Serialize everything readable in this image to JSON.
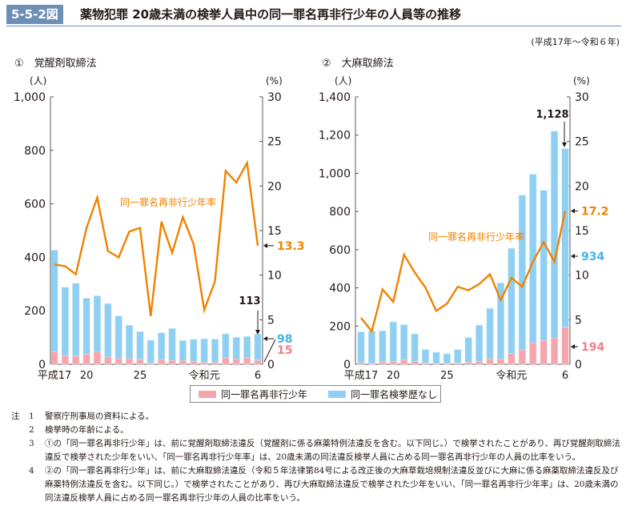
{
  "header": {
    "figure_number": "5-5-2図",
    "title": "薬物犯罪 20歳未満の検挙人員中の同一罪名再非行少年の人員等の推移",
    "period": "(平成17年～令和６年)"
  },
  "colors": {
    "title_box": "#6b8fb5",
    "recidivist_bar": "#f4a6ad",
    "no_record_bar": "#8fd0f2",
    "rate_line": "#f08200",
    "label_blue": "#3fb4e6",
    "label_red": "#ef7f8c"
  },
  "legend": {
    "items": [
      {
        "label": "同一罪名再非行少年",
        "color": "#f4a6ad"
      },
      {
        "label": "同一罪名検挙歴なし",
        "color": "#8fd0f2"
      }
    ]
  },
  "chart_data": [
    {
      "type": "bar",
      "stacked": true,
      "title": "①　覚醒剤取締法",
      "x": [
        "平成17",
        "18",
        "19",
        "20",
        "21",
        "22",
        "23",
        "24",
        "25",
        "26",
        "27",
        "28",
        "29",
        "30",
        "令和元",
        "2",
        "3",
        "4",
        "5",
        "6"
      ],
      "x_tick_labels": {
        "0": "平成17",
        "3": "20",
        "8": "25",
        "14": "令和元",
        "19": "6"
      },
      "ylabel_left": "(人)",
      "ylabel_right": "(%)",
      "ylim_left": [
        0,
        1000
      ],
      "yticks_left": [
        0,
        200,
        400,
        600,
        800,
        1000
      ],
      "ytick_labels_left": [
        "0",
        "200",
        "400",
        "600",
        "800",
        "1,000"
      ],
      "ylim_right": [
        0,
        30
      ],
      "yticks_right": [
        0,
        5,
        10,
        15,
        20,
        25,
        30
      ],
      "series": [
        {
          "name": "同一罪名再非行少年",
          "kind": "bar",
          "axis": "left",
          "values": [
            47,
            31,
            30,
            37,
            47,
            27,
            21,
            21,
            18,
            4,
            17,
            14,
            14,
            11,
            6,
            7,
            23,
            20,
            23,
            15
          ]
        },
        {
          "name": "同一罪名検挙歴なし",
          "kind": "bar",
          "axis": "left",
          "values": [
            380,
            257,
            273,
            210,
            209,
            200,
            160,
            125,
            104,
            86,
            101,
            120,
            75,
            82,
            89,
            87,
            91,
            81,
            81,
            98
          ]
        },
        {
          "name": "同一罪名再非行少年率",
          "kind": "line",
          "axis": "right",
          "values": [
            11.2,
            11.0,
            10.1,
            15.3,
            18.7,
            12.7,
            12.0,
            14.9,
            15.3,
            5.4,
            16.0,
            12.5,
            16.5,
            13.5,
            6.1,
            9.3,
            21.7,
            20.4,
            22.6,
            13.3
          ]
        }
      ],
      "annotations": {
        "line_label": "同一罪名再非行少年率",
        "total_last": "113",
        "no_record_last": "98",
        "recidivist_last": "15",
        "rate_last": "13.3"
      }
    },
    {
      "type": "bar",
      "stacked": true,
      "title": "②　大麻取締法",
      "x": [
        "平成17",
        "18",
        "19",
        "20",
        "21",
        "22",
        "23",
        "24",
        "25",
        "26",
        "27",
        "28",
        "29",
        "30",
        "令和元",
        "2",
        "3",
        "4",
        "5",
        "6"
      ],
      "x_tick_labels": {
        "0": "平成17",
        "3": "20",
        "8": "25",
        "14": "令和元",
        "19": "6"
      },
      "ylabel_left": "(人)",
      "ylabel_right": "(%)",
      "ylim_left": [
        0,
        1400
      ],
      "yticks_left": [
        0,
        200,
        400,
        600,
        800,
        1000,
        1200,
        1400
      ],
      "ytick_labels_left": [
        "0",
        "200",
        "400",
        "600",
        "800",
        "1,000",
        "1,200",
        "1,400"
      ],
      "ylim_right": [
        0,
        30
      ],
      "yticks_right": [
        0,
        5,
        10,
        15,
        20,
        25,
        30
      ],
      "series": [
        {
          "name": "同一罪名再非行少年",
          "kind": "bar",
          "axis": "left",
          "values": [
            8,
            4,
            13,
            14,
            24,
            14,
            6,
            3,
            3,
            6,
            10,
            15,
            28,
            28,
            56,
            74,
            112,
            124,
            137,
            194
          ]
        },
        {
          "name": "同一罪名検挙歴なし",
          "kind": "bar",
          "axis": "left",
          "values": [
            162,
            171,
            162,
            208,
            183,
            145,
            71,
            60,
            52,
            71,
            130,
            190,
            265,
            398,
            551,
            811,
            883,
            787,
            1083,
            934
          ]
        },
        {
          "name": "同一罪名再非行少年率",
          "kind": "line",
          "axis": "right",
          "values": [
            5.2,
            3.7,
            8.4,
            7.0,
            12.3,
            10.3,
            8.6,
            6.0,
            6.8,
            8.7,
            8.3,
            9.0,
            10.1,
            7.2,
            9.7,
            8.7,
            11.5,
            13.7,
            11.5,
            17.2
          ]
        }
      ],
      "annotations": {
        "line_label": "同一罪名再非行少年率",
        "total_last": "1,128",
        "no_record_last": "934",
        "recidivist_last": "194",
        "rate_last": "17.2"
      }
    }
  ],
  "notes": {
    "head": "注",
    "items": [
      {
        "num": "1",
        "text": "警察庁刑事局の資料による。"
      },
      {
        "num": "2",
        "text": "検挙時の年齢による。"
      },
      {
        "num": "3",
        "text": "①の「同一罪名再非行少年」は、前に覚醒剤取締法違反（覚醒剤に係る麻薬特例法違反を含む。以下同じ。）で検挙されたことがあり、再び覚醒剤取締法違反で検挙された少年をいい、「同一罪名再非行少年率」は、20歳未満の同法違反検挙人員に占める同一罪名再非行少年の人員の比率をいう。"
      },
      {
        "num": "4",
        "text": "②の「同一罪名再非行少年」は、前に大麻取締法違反（令和５年法律第84号による改正後の大麻草栽培規制法違反並びに大麻に係る麻薬取締法違反及び麻薬特例法違反を含む。以下同じ。）で検挙されたことがあり、再び大麻取締法違反で検挙された少年をいい、「同一罪名再非行少年率」は、20歳未満の同法違反検挙人員に占める同一罪名再非行少年の人員の比率をいう。"
      }
    ]
  }
}
